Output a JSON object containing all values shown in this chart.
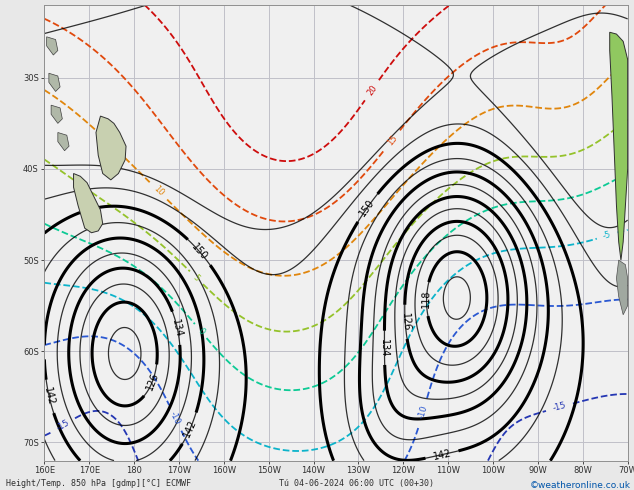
{
  "title": "Height/Temp. 850 hPa [gdmp][°C] ECMWF",
  "subtitle": "Tú 04-06-2024 06:00 UTC (00+30)",
  "credit": "©weatheronline.co.uk",
  "bg_color": "#e8e8e8",
  "map_bg": "#f0f0f0",
  "grid_color": "#c0c0c8",
  "bottom_text_color": "#303030",
  "credit_color": "#0055aa",
  "xlim": [
    160,
    290
  ],
  "ylim": [
    -72,
    -22
  ],
  "xticks": [
    160,
    170,
    180,
    190,
    200,
    210,
    220,
    230,
    240,
    250,
    260,
    270,
    280,
    290
  ],
  "xtick_labels": [
    "160E",
    "170E",
    "180",
    "170W",
    "160W",
    "150W",
    "140W",
    "130W",
    "120W",
    "110W",
    "100W",
    "90W",
    "80W",
    "70W"
  ],
  "yticks": [
    -70,
    -60,
    -50,
    -40,
    -30
  ],
  "ytick_labels": [
    "70S",
    "60S",
    "50S",
    "40S",
    "30S"
  ],
  "z_bold_levels": [
    110,
    118,
    126,
    134,
    142,
    150
  ],
  "z_all_levels": [
    106,
    110,
    114,
    118,
    122,
    126,
    130,
    134,
    138,
    142,
    146,
    150,
    154,
    158
  ],
  "temp_levels": [
    -15,
    -10,
    -5,
    0,
    5,
    10,
    15,
    20
  ],
  "temp_colors": [
    "#1a2db0",
    "#2050d0",
    "#00b0c8",
    "#00c890",
    "#90c020",
    "#e08000",
    "#e04000",
    "#cc0000"
  ],
  "land_nz_color": "#c8d0b0",
  "land_sa_color": "#90c860",
  "land_sa_gray": "#a0a8a0"
}
